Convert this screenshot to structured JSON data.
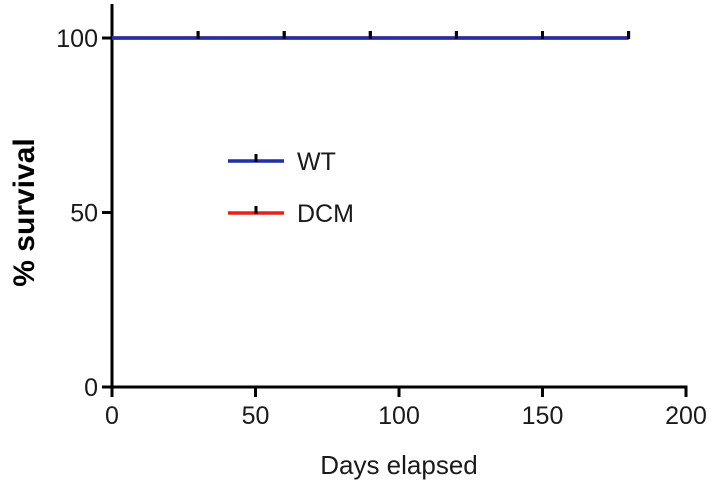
{
  "chart_data": {
    "type": "line",
    "subtype": "kaplan-meier survival curve",
    "title": "",
    "xlabel": "Days elapsed",
    "ylabel": "% survival",
    "xlim": [
      0,
      200
    ],
    "ylim": [
      0,
      100
    ],
    "x_ticks": [
      0,
      50,
      100,
      150,
      200
    ],
    "y_ticks": [
      0,
      50,
      100
    ],
    "grid": false,
    "legend_position": "center-left",
    "series": [
      {
        "name": "WT",
        "color": "#1f2fa8",
        "x": [
          0,
          180
        ],
        "y": [
          100,
          100
        ],
        "censor_marks_x": [
          30,
          60,
          90,
          120,
          150,
          180
        ]
      },
      {
        "name": "DCM",
        "color": "#e8201c",
        "x": [
          0,
          180
        ],
        "y": [
          100,
          100
        ],
        "censor_marks_x": [
          30,
          60,
          90,
          120,
          150,
          180
        ]
      }
    ]
  }
}
